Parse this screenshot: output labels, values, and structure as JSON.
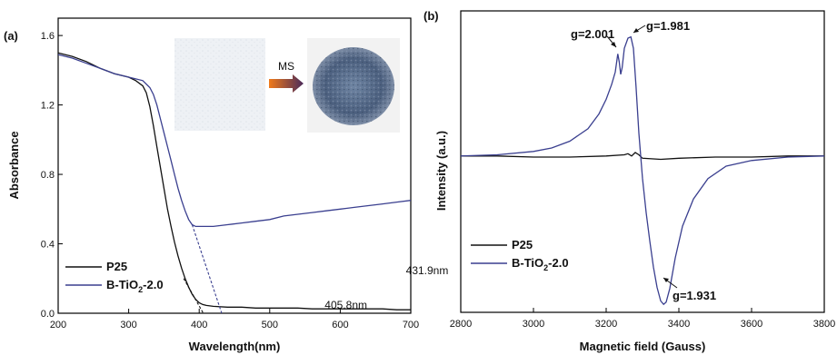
{
  "chart_data": [
    {
      "type": "line",
      "panel_label": "(a)",
      "xlabel": "Wavelength(nm)",
      "ylabel": "Absorbance",
      "xlim": [
        200,
        700
      ],
      "ylim": [
        0,
        1.7
      ],
      "xticks": [
        200,
        300,
        400,
        500,
        600,
        700
      ],
      "yticks": [
        0.0,
        0.4,
        0.8,
        1.2,
        1.6
      ],
      "ytick_labels": [
        "0.0",
        "0.4",
        "0.8",
        "1.2",
        "1.6"
      ],
      "grid": false,
      "legend_position": "bottom-left",
      "series": [
        {
          "name": "P25",
          "color": "#111111",
          "x": [
            200,
            220,
            240,
            260,
            280,
            300,
            310,
            320,
            325,
            330,
            335,
            340,
            345,
            350,
            355,
            360,
            365,
            370,
            375,
            380,
            385,
            390,
            395,
            400,
            405,
            410,
            420,
            440,
            460,
            480,
            500,
            520,
            540,
            560,
            580,
            600,
            620,
            640,
            660,
            680,
            700
          ],
          "y": [
            1.5,
            1.48,
            1.45,
            1.41,
            1.38,
            1.36,
            1.34,
            1.31,
            1.27,
            1.19,
            1.08,
            0.96,
            0.84,
            0.72,
            0.6,
            0.5,
            0.41,
            0.33,
            0.26,
            0.2,
            0.15,
            0.11,
            0.08,
            0.06,
            0.05,
            0.045,
            0.04,
            0.035,
            0.035,
            0.03,
            0.03,
            0.03,
            0.03,
            0.025,
            0.025,
            0.025,
            0.025,
            0.025,
            0.025,
            0.02,
            0.02
          ]
        },
        {
          "name": "B-TiO2-2.0",
          "legend_label": "B-TiO",
          "legend_sub": "2",
          "legend_suffix": "-2.0",
          "color": "#3a3f8f",
          "x": [
            200,
            220,
            240,
            260,
            280,
            300,
            310,
            320,
            330,
            335,
            340,
            345,
            350,
            355,
            360,
            365,
            370,
            375,
            380,
            385,
            390,
            395,
            400,
            410,
            420,
            440,
            460,
            480,
            500,
            520,
            540,
            560,
            580,
            600,
            620,
            640,
            660,
            680,
            700
          ],
          "y": [
            1.49,
            1.47,
            1.44,
            1.41,
            1.38,
            1.36,
            1.35,
            1.34,
            1.3,
            1.26,
            1.2,
            1.12,
            1.04,
            0.96,
            0.88,
            0.8,
            0.72,
            0.65,
            0.59,
            0.54,
            0.51,
            0.5,
            0.5,
            0.5,
            0.5,
            0.51,
            0.52,
            0.53,
            0.54,
            0.56,
            0.57,
            0.58,
            0.59,
            0.6,
            0.61,
            0.62,
            0.63,
            0.64,
            0.65
          ]
        }
      ],
      "tangent_lines": [
        {
          "x": [
            378,
            405.8
          ],
          "y": [
            0.2,
            0.0
          ],
          "color": "#111111"
        },
        {
          "x": [
            390,
            431.9
          ],
          "y": [
            0.51,
            0.0
          ],
          "color": "#3a3f8f"
        }
      ],
      "annotations": [
        {
          "text": "405.8nm",
          "x": 405.8,
          "y": 0.0
        },
        {
          "text": "431.9nm",
          "x": 431.9,
          "y": 0.0
        }
      ],
      "inset": {
        "arrow_label": "MS"
      }
    },
    {
      "type": "line",
      "panel_label": "(b)",
      "xlabel": "Magnetic field (Gauss)",
      "ylabel": "Intensity (a.u.)",
      "xlim": [
        2800,
        3800
      ],
      "xticks": [
        2800,
        3000,
        3200,
        3400,
        3600,
        3800
      ],
      "ylim": [
        -1.3,
        1.2
      ],
      "show_yticks": false,
      "grid": false,
      "legend_position": "bottom-left",
      "series": [
        {
          "name": "P25",
          "color": "#111111",
          "x": [
            2800,
            2900,
            3000,
            3100,
            3200,
            3250,
            3260,
            3270,
            3280,
            3290,
            3300,
            3350,
            3400,
            3500,
            3600,
            3700,
            3800
          ],
          "y": [
            0.0,
            0.0,
            -0.01,
            -0.01,
            0.0,
            0.01,
            0.02,
            0.0,
            0.03,
            0.01,
            -0.02,
            -0.03,
            -0.02,
            -0.01,
            -0.01,
            0.0,
            0.0
          ]
        },
        {
          "name": "B-TiO2-2.0",
          "legend_label": "B-TiO",
          "legend_sub": "2",
          "legend_suffix": "-2.0",
          "color": "#3a3f8f",
          "x": [
            2800,
            2900,
            3000,
            3050,
            3100,
            3150,
            3180,
            3200,
            3215,
            3225,
            3232,
            3236,
            3240,
            3244,
            3250,
            3260,
            3268,
            3275,
            3282,
            3290,
            3300,
            3310,
            3320,
            3330,
            3340,
            3350,
            3358,
            3365,
            3375,
            3390,
            3410,
            3440,
            3480,
            3530,
            3600,
            3700,
            3800
          ],
          "y": [
            0.0,
            0.01,
            0.04,
            0.07,
            0.13,
            0.24,
            0.37,
            0.5,
            0.63,
            0.74,
            0.9,
            0.83,
            0.72,
            0.78,
            0.95,
            1.04,
            1.05,
            0.95,
            0.62,
            0.2,
            -0.2,
            -0.5,
            -0.75,
            -0.98,
            -1.16,
            -1.28,
            -1.31,
            -1.29,
            -1.17,
            -0.9,
            -0.62,
            -0.38,
            -0.2,
            -0.09,
            -0.04,
            -0.01,
            0.0
          ]
        }
      ],
      "annotations": [
        {
          "text": "g=2.001",
          "x": 3236,
          "y": 0.9
        },
        {
          "text": "g=1.981",
          "x": 3268,
          "y": 1.05
        },
        {
          "text": "g=1.931",
          "x": 3358,
          "y": -1.31
        }
      ]
    }
  ]
}
